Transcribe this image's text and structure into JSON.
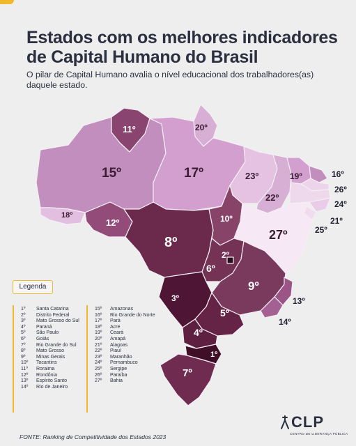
{
  "title": {
    "line1": "Estados com os melhores indicadores",
    "line2": "de Capital Humano do Brasil"
  },
  "subtitle": "O pilar de Capital Humano avalia o nível educacional dos trabalhadores(as) daquele estado.",
  "legend": {
    "title": "Legenda",
    "column1": [
      {
        "rank": "1º",
        "state": "Santa Catarina"
      },
      {
        "rank": "2º",
        "state": "Distrito Federal"
      },
      {
        "rank": "3º",
        "state": "Mato Grosso do Sul"
      },
      {
        "rank": "4º",
        "state": "Paraná"
      },
      {
        "rank": "5º",
        "state": "São Paulo"
      },
      {
        "rank": "6º",
        "state": "Goiás"
      },
      {
        "rank": "7º",
        "state": "Rio Grande do Sul"
      },
      {
        "rank": "8º",
        "state": "Mato Grosso"
      },
      {
        "rank": "9º",
        "state": "Minas Gerais"
      },
      {
        "rank": "10º",
        "state": "Tocantins"
      },
      {
        "rank": "11º",
        "state": "Roraima"
      },
      {
        "rank": "12º",
        "state": "Rondônia"
      },
      {
        "rank": "13º",
        "state": "Espírito Santo"
      },
      {
        "rank": "14º",
        "state": "Rio de Janeiro"
      }
    ],
    "column2": [
      {
        "rank": "15º",
        "state": "Amazonas"
      },
      {
        "rank": "16º",
        "state": "Rio Grande do Norte"
      },
      {
        "rank": "17º",
        "state": "Pará"
      },
      {
        "rank": "18º",
        "state": "Acre"
      },
      {
        "rank": "19º",
        "state": "Ceará"
      },
      {
        "rank": "20º",
        "state": "Amapá"
      },
      {
        "rank": "21º",
        "state": "Alagoas"
      },
      {
        "rank": "22º",
        "state": "Piauí"
      },
      {
        "rank": "23º",
        "state": "Maranhão"
      },
      {
        "rank": "24º",
        "state": "Pernambuco"
      },
      {
        "rank": "25º",
        "state": "Sergipe"
      },
      {
        "rank": "26º",
        "state": "Paraíba"
      },
      {
        "rank": "27º",
        "state": "Bahia"
      }
    ]
  },
  "map_labels": {
    "RR": "11º",
    "AP": "20º",
    "AM": "15º",
    "PA": "17º",
    "AC": "18º",
    "RO": "12º",
    "MA": "23º",
    "CE": "19º",
    "RN": "16º",
    "PB": "26º",
    "PE": "24º",
    "AL": "21º",
    "SE": "25º",
    "PI": "22º",
    "TO": "10º",
    "BA": "27º",
    "MT": "8º",
    "DF": "2º",
    "GO": "6º",
    "MG": "9º",
    "MS": "3º",
    "SP": "5º",
    "ES": "13º",
    "RJ": "14º",
    "PR": "4º",
    "SC": "1º",
    "RS": "7º"
  },
  "colors": {
    "tier1": "#4a1530",
    "tier2": "#6e2a4e",
    "tier3": "#8e4a74",
    "tier4": "#b07aa6",
    "tier5": "#cfa0cc",
    "tier6": "#e8c8e6",
    "tier7": "#f4e4f2",
    "accent": "#f2b82c"
  },
  "source": "FONTE: Ranking de Competitividade dos Estados 2023",
  "logo": {
    "name": "CLP",
    "subtitle": "CENTRO DE LIDERANÇA PÚBLICA"
  }
}
